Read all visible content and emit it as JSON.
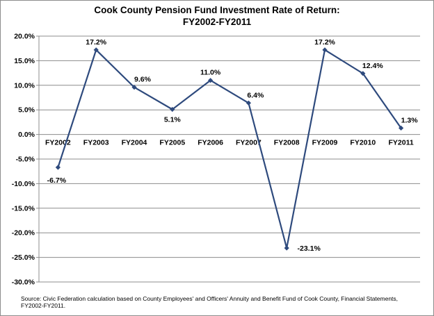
{
  "chart_data": {
    "type": "line",
    "title": "Cook County Pension Fund Investment Rate of Return:",
    "subtitle": "FY2002-FY2011",
    "categories": [
      "FY2002",
      "FY2003",
      "FY2004",
      "FY2005",
      "FY2006",
      "FY2007",
      "FY2008",
      "FY2009",
      "FY2010",
      "FY2011"
    ],
    "values": [
      -6.7,
      17.2,
      9.6,
      5.1,
      11.0,
      6.4,
      -23.1,
      17.2,
      12.4,
      1.3
    ],
    "data_labels": [
      "-6.7%",
      "17.2%",
      "9.6%",
      "5.1%",
      "11.0%",
      "6.4%",
      "-23.1%",
      "17.2%",
      "12.4%",
      "1.3%"
    ],
    "ylim": [
      -30,
      20
    ],
    "ytick_step": 5,
    "ytick_labels": [
      "20.0%",
      "15.0%",
      "10.0%",
      "5.0%",
      "0.0%",
      "-5.0%",
      "-10.0%",
      "-15.0%",
      "-20.0%",
      "-25.0%",
      "-30.0%"
    ],
    "xlabel": "",
    "ylabel": "",
    "grid": true,
    "legend": "none",
    "line_color": "#2e4a7d",
    "grid_color": "#8c8c8c"
  },
  "source": "Source: Civic Federation calculation based on County Employees' and Officers' Annuity and Benefit Fund of Cook County, Financial Statements, FY2002-FY2011."
}
